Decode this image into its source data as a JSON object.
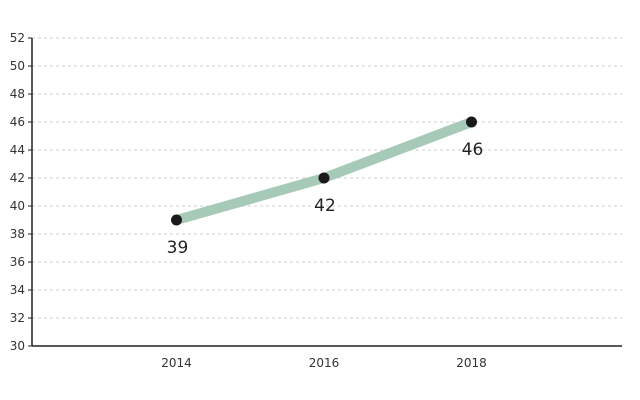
{
  "chart_data": {
    "type": "line",
    "categories": [
      "2014",
      "2016",
      "2018"
    ],
    "x": [
      2014,
      2016,
      2018
    ],
    "series": [
      {
        "values": [
          39,
          42,
          46
        ]
      }
    ],
    "data_labels": [
      "39",
      "42",
      "46"
    ],
    "y_ticks": [
      "30",
      "32",
      "34",
      "36",
      "38",
      "40",
      "42",
      "44",
      "46",
      "48",
      "50",
      "52"
    ],
    "ylim": [
      30,
      52
    ],
    "grid": true,
    "line_color": "#a7c9b8",
    "marker_color": "#1a1a1a"
  }
}
